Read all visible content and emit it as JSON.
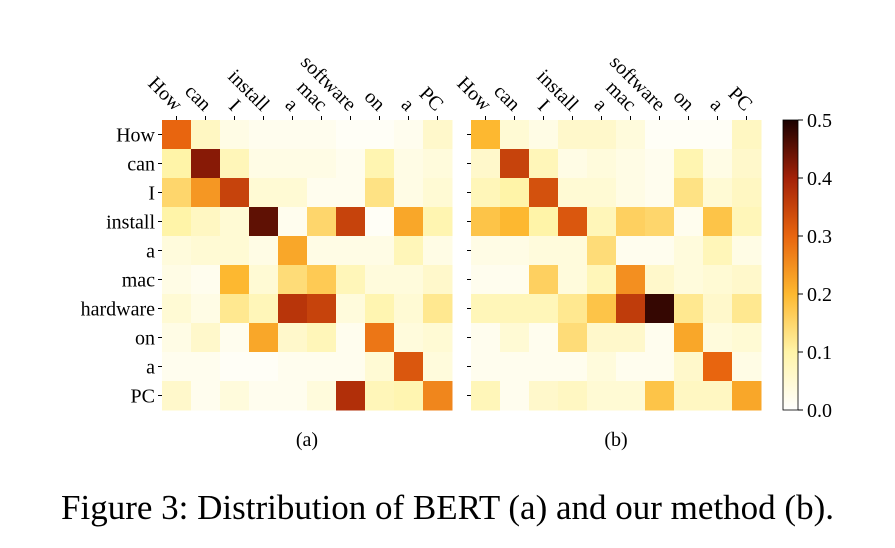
{
  "caption": "Figure 3: Distribution of BERT (a) and our method (b).",
  "chart_data": [
    {
      "type": "heatmap",
      "panel_label": "(a)",
      "x_labels": [
        "How",
        "can",
        "I",
        "install",
        "a",
        "mac",
        "software",
        "on",
        "a",
        "PC"
      ],
      "y_labels": [
        "How",
        "can",
        "I",
        "install",
        "a",
        "mac",
        "hardware",
        "on",
        "a",
        "PC"
      ],
      "values": [
        [
          0.3,
          0.07,
          0.03,
          0.02,
          0.02,
          0.02,
          0.01,
          0.01,
          0.02,
          0.06
        ],
        [
          0.1,
          0.42,
          0.08,
          0.03,
          0.03,
          0.03,
          0.02,
          0.09,
          0.03,
          0.04
        ],
        [
          0.15,
          0.24,
          0.35,
          0.05,
          0.05,
          0.02,
          0.02,
          0.13,
          0.03,
          0.05
        ],
        [
          0.1,
          0.07,
          0.05,
          0.45,
          0.02,
          0.15,
          0.35,
          0.01,
          0.22,
          0.09
        ],
        [
          0.04,
          0.05,
          0.05,
          0.03,
          0.22,
          0.03,
          0.03,
          0.03,
          0.08,
          0.03
        ],
        [
          0.03,
          0.02,
          0.2,
          0.05,
          0.14,
          0.17,
          0.08,
          0.04,
          0.04,
          0.06
        ],
        [
          0.05,
          0.03,
          0.12,
          0.08,
          0.37,
          0.35,
          0.04,
          0.09,
          0.05,
          0.12
        ],
        [
          0.03,
          0.06,
          0.02,
          0.22,
          0.06,
          0.08,
          0.02,
          0.28,
          0.04,
          0.05
        ],
        [
          0.02,
          0.02,
          0.01,
          0.01,
          0.02,
          0.02,
          0.02,
          0.05,
          0.32,
          0.04
        ],
        [
          0.06,
          0.02,
          0.04,
          0.02,
          0.02,
          0.04,
          0.38,
          0.08,
          0.09,
          0.26
        ]
      ]
    },
    {
      "type": "heatmap",
      "panel_label": "(b)",
      "x_labels": [
        "How",
        "can",
        "I",
        "install",
        "a",
        "mac",
        "software",
        "on",
        "a",
        "PC"
      ],
      "y_labels": [
        "How",
        "can",
        "I",
        "install",
        "a",
        "mac",
        "hardware",
        "on",
        "a",
        "PC"
      ],
      "values": [
        [
          0.2,
          0.05,
          0.03,
          0.06,
          0.06,
          0.04,
          0.01,
          0.01,
          0.01,
          0.07
        ],
        [
          0.06,
          0.35,
          0.08,
          0.03,
          0.04,
          0.03,
          0.02,
          0.09,
          0.03,
          0.06
        ],
        [
          0.08,
          0.1,
          0.33,
          0.05,
          0.05,
          0.03,
          0.02,
          0.13,
          0.05,
          0.07
        ],
        [
          0.18,
          0.2,
          0.1,
          0.32,
          0.08,
          0.16,
          0.15,
          0.02,
          0.18,
          0.08
        ],
        [
          0.03,
          0.03,
          0.04,
          0.04,
          0.14,
          0.02,
          0.02,
          0.04,
          0.08,
          0.03
        ],
        [
          0.02,
          0.02,
          0.16,
          0.04,
          0.08,
          0.25,
          0.06,
          0.04,
          0.05,
          0.06
        ],
        [
          0.08,
          0.08,
          0.08,
          0.12,
          0.18,
          0.36,
          0.48,
          0.12,
          0.06,
          0.12
        ],
        [
          0.02,
          0.05,
          0.02,
          0.14,
          0.06,
          0.06,
          0.02,
          0.22,
          0.04,
          0.05
        ],
        [
          0.02,
          0.02,
          0.02,
          0.02,
          0.04,
          0.02,
          0.02,
          0.06,
          0.3,
          0.03
        ],
        [
          0.08,
          0.02,
          0.06,
          0.07,
          0.05,
          0.05,
          0.18,
          0.07,
          0.07,
          0.22
        ]
      ]
    }
  ],
  "colorbar": {
    "colormap": "YlOrBr-to-black (white at 0, dark at max)",
    "range": [
      0.0,
      0.5
    ],
    "ticks": [
      "0.0",
      "0.1",
      "0.2",
      "0.3",
      "0.4",
      "0.5"
    ]
  }
}
